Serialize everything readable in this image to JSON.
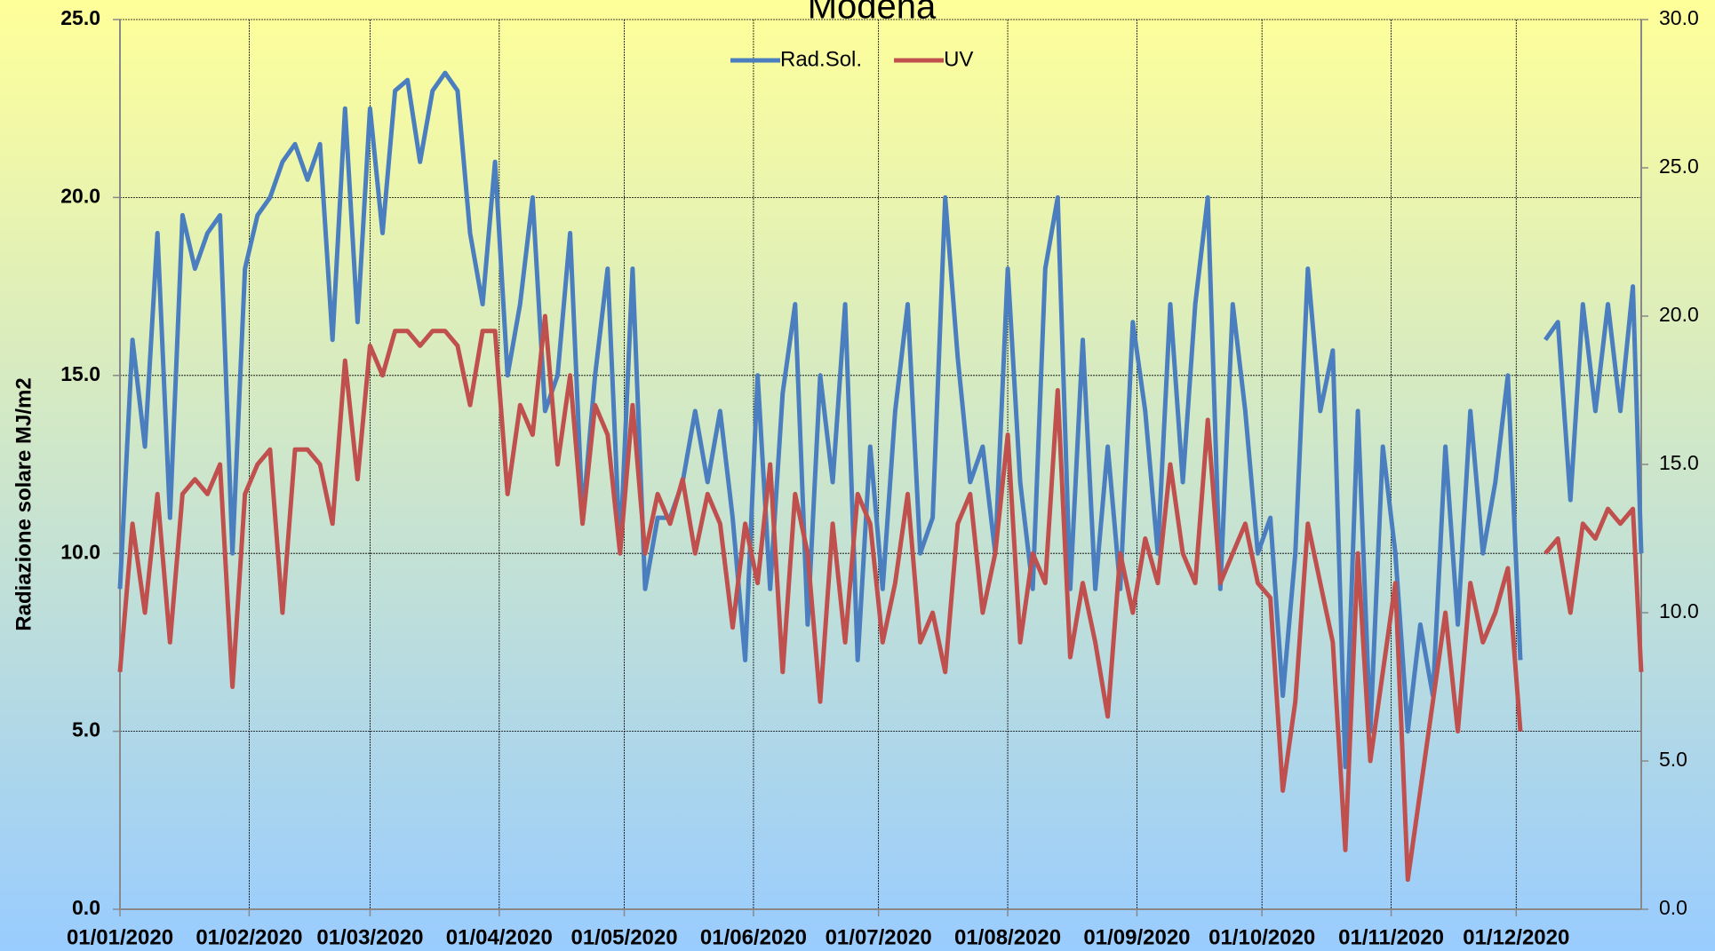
{
  "chart_data": {
    "type": "line",
    "title": "Modena",
    "y_label": "Radiazione solare MJ/m2",
    "x": [
      0,
      3,
      6,
      9,
      12,
      15,
      18,
      21,
      24,
      27,
      30,
      33,
      36,
      39,
      42,
      45,
      48,
      51,
      54,
      57,
      60,
      63,
      66,
      69,
      72,
      75,
      78,
      81,
      84,
      87,
      90,
      93,
      96,
      99,
      102,
      105,
      108,
      111,
      114,
      117,
      120,
      123,
      126,
      129,
      132,
      135,
      138,
      141,
      144,
      147,
      150,
      153,
      156,
      159,
      162,
      165,
      168,
      171,
      174,
      177,
      180,
      183,
      186,
      189,
      192,
      195,
      198,
      201,
      204,
      207,
      210,
      213,
      216,
      219,
      222,
      225,
      228,
      231,
      234,
      237,
      240,
      243,
      246,
      249,
      252,
      255,
      258,
      261,
      264,
      267,
      270,
      273,
      276,
      279,
      282,
      285,
      288,
      291,
      294,
      297,
      300,
      303,
      306,
      309,
      312,
      315,
      318,
      321,
      324,
      327,
      330,
      333,
      336,
      339,
      342,
      345,
      348,
      351,
      354,
      357,
      360,
      363,
      365
    ],
    "xlim": [
      0,
      365
    ],
    "xticks": [
      {
        "value": 0,
        "label": "01/01/2020"
      },
      {
        "value": 31,
        "label": "01/02/2020"
      },
      {
        "value": 60,
        "label": "01/03/2020"
      },
      {
        "value": 91,
        "label": "01/04/2020"
      },
      {
        "value": 121,
        "label": "01/05/2020"
      },
      {
        "value": 152,
        "label": "01/06/2020"
      },
      {
        "value": 182,
        "label": "01/07/2020"
      },
      {
        "value": 213,
        "label": "01/08/2020"
      },
      {
        "value": 244,
        "label": "01/09/2020"
      },
      {
        "value": 274,
        "label": "01/10/2020"
      },
      {
        "value": 305,
        "label": "01/11/2020"
      },
      {
        "value": 335,
        "label": "01/12/2020"
      }
    ],
    "ylim": [
      0,
      25
    ],
    "yticks": [
      {
        "value": 0,
        "label": "0.0"
      },
      {
        "value": 5,
        "label": "5.0"
      },
      {
        "value": 10,
        "label": "10.0"
      },
      {
        "value": 15,
        "label": "15.0"
      },
      {
        "value": 20,
        "label": "20.0"
      },
      {
        "value": 25,
        "label": "25.0"
      }
    ],
    "y2lim": [
      0,
      30
    ],
    "y2ticks": [
      {
        "value": 0,
        "label": "0.0"
      },
      {
        "value": 5,
        "label": "5.0"
      },
      {
        "value": 10,
        "label": "10.0"
      },
      {
        "value": 15,
        "label": "15.0"
      },
      {
        "value": 20,
        "label": "20.0"
      },
      {
        "value": 25,
        "label": "25.0"
      },
      {
        "value": 30,
        "label": "30.0"
      }
    ],
    "grid": true,
    "legend": "top",
    "series": [
      {
        "name": "Rad.Sol.",
        "color": "#4a7ebf",
        "values": [
          9,
          16,
          13,
          19,
          11,
          19.5,
          18,
          19,
          19.5,
          10,
          18,
          19.5,
          20,
          21,
          21.5,
          20.5,
          21.5,
          16,
          22.5,
          16.5,
          22.5,
          19,
          23,
          23.3,
          21,
          23,
          23.5,
          23,
          19,
          17,
          21,
          15,
          17,
          20,
          14,
          15,
          19,
          11,
          15,
          18,
          10,
          18,
          9,
          11,
          11,
          12,
          14,
          12,
          14,
          11,
          7,
          15,
          9,
          14.5,
          17,
          8,
          15,
          12,
          17,
          7,
          13,
          9,
          14,
          17,
          10,
          11,
          20,
          15.5,
          12,
          13,
          10,
          18,
          12,
          9,
          18,
          20,
          9,
          16,
          9,
          13,
          9,
          16.5,
          14,
          10,
          17,
          12,
          17,
          20,
          9,
          17,
          14,
          10,
          11,
          6,
          10,
          18,
          14,
          15.7,
          4,
          14,
          5,
          13,
          10,
          5,
          8,
          6,
          13,
          8,
          14,
          10,
          12,
          15,
          7,
          null,
          16,
          16.5,
          11.5,
          17,
          14,
          17,
          14,
          17.5,
          10
        ]
      },
      {
        "name": "UV",
        "color": "#c0504d",
        "axis": "y2",
        "values": [
          8,
          13,
          10,
          14,
          9,
          14,
          14.5,
          14,
          15,
          7.5,
          14,
          15,
          15.5,
          10,
          15.5,
          15.5,
          15,
          13,
          18.5,
          14.5,
          19,
          18,
          19.5,
          19.5,
          19,
          19.5,
          19.5,
          19,
          17,
          19.5,
          19.5,
          14,
          17,
          16,
          20,
          15,
          18,
          13,
          17,
          16,
          12,
          17,
          12,
          14,
          13,
          14.5,
          12,
          14,
          13,
          9.5,
          13,
          11,
          15,
          8,
          14,
          12,
          7,
          13,
          9,
          14,
          13,
          9,
          11,
          14,
          9,
          10,
          8,
          13,
          14,
          10,
          12,
          16,
          9,
          12,
          11,
          17.5,
          8.5,
          11,
          9,
          6.5,
          12,
          10,
          12.5,
          11,
          15,
          12,
          11,
          16.5,
          11,
          12,
          13,
          11,
          10.5,
          4,
          7,
          13,
          11,
          9,
          2,
          12,
          5,
          8,
          11,
          1,
          4,
          7,
          10,
          6,
          11,
          9,
          10,
          11.5,
          6,
          null,
          12,
          12.5,
          10,
          13,
          12.5,
          13.5,
          13,
          13.5,
          8
        ]
      }
    ]
  }
}
